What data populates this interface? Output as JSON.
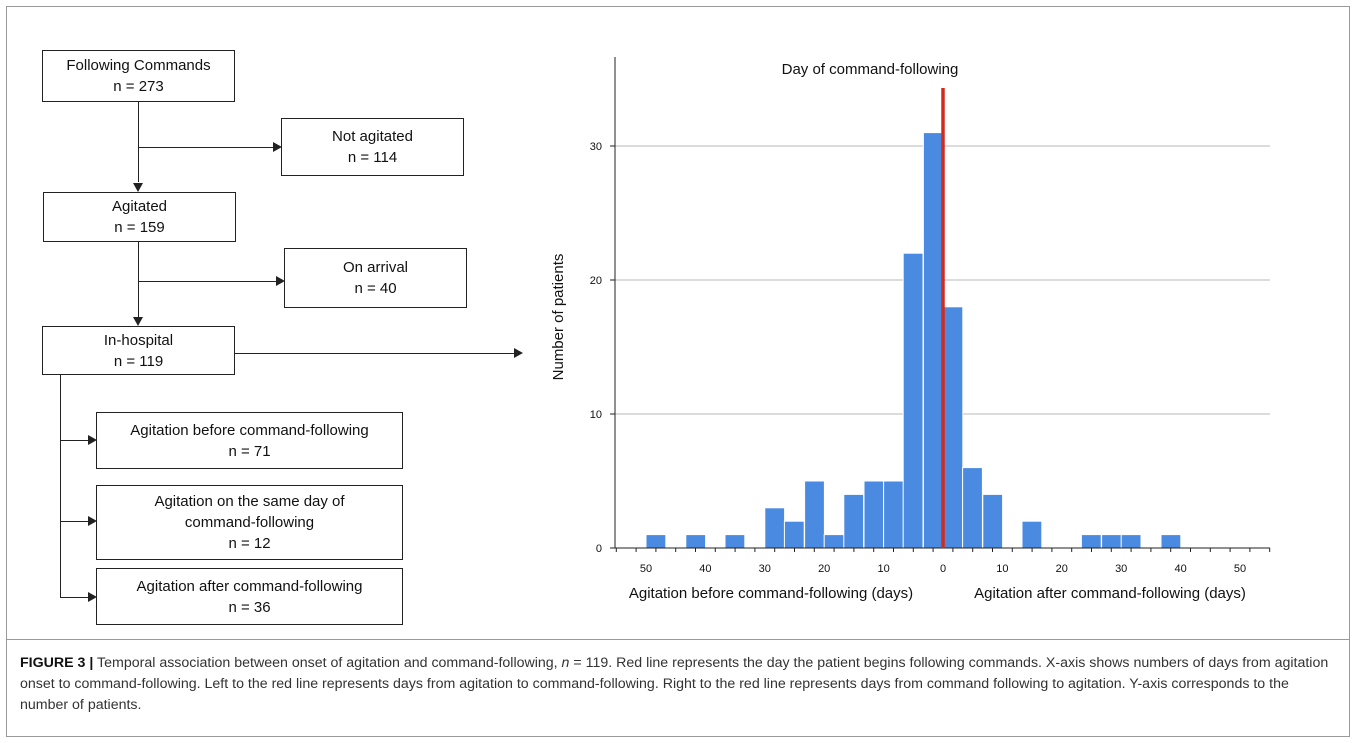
{
  "flowchart": {
    "following": {
      "label": "Following Commands",
      "n": "n = 273"
    },
    "not_agitated": {
      "label": "Not agitated",
      "n": "n = 114"
    },
    "agitated": {
      "label": "Agitated",
      "n": "n = 159"
    },
    "on_arrival": {
      "label": "On arrival",
      "n": "n = 40"
    },
    "in_hospital": {
      "label": "In-hospital",
      "n": "n = 119"
    },
    "before": {
      "label": "Agitation before command-following",
      "n": "n = 71"
    },
    "same_day": {
      "label_line1": "Agitation on the same day of",
      "label_line2": "command-following",
      "n": "n = 12"
    },
    "after": {
      "label": "Agitation after command-following",
      "n": "n = 36"
    }
  },
  "chart_data": {
    "type": "bar",
    "title": "Day of command-following",
    "ylabel": "Number of patients",
    "xlabel_left": "Agitation before command-following (days)",
    "xlabel_right": "Agitation after command-following (days)",
    "x_unit_note": "days from command-following; negative = agitation before",
    "bin_width": 3.3333,
    "ylim": [
      0,
      35
    ],
    "yticks": [
      0,
      10,
      20,
      30
    ],
    "xticks": [
      -50,
      -40,
      -30,
      -20,
      -10,
      0,
      10,
      20,
      30,
      40,
      50
    ],
    "xtick_labels": [
      "50",
      "40",
      "30",
      "20",
      "10",
      "0",
      "10",
      "20",
      "30",
      "40",
      "50"
    ],
    "bins": [
      {
        "start": -50.0,
        "value": 1
      },
      {
        "start": -43.3,
        "value": 1
      },
      {
        "start": -36.7,
        "value": 1
      },
      {
        "start": -30.0,
        "value": 3
      },
      {
        "start": -26.7,
        "value": 2
      },
      {
        "start": -23.3,
        "value": 5
      },
      {
        "start": -20.0,
        "value": 1
      },
      {
        "start": -16.7,
        "value": 4
      },
      {
        "start": -13.3,
        "value": 5
      },
      {
        "start": -10.0,
        "value": 5
      },
      {
        "start": -6.7,
        "value": 22
      },
      {
        "start": -3.3,
        "value": 31
      },
      {
        "start": 0.0,
        "value": 18
      },
      {
        "start": 3.3,
        "value": 6
      },
      {
        "start": 6.7,
        "value": 4
      },
      {
        "start": 13.3,
        "value": 2
      },
      {
        "start": 23.3,
        "value": 1
      },
      {
        "start": 26.7,
        "value": 1
      },
      {
        "start": 30.0,
        "value": 1
      },
      {
        "start": 36.7,
        "value": 1
      }
    ],
    "command_day_x": 0,
    "bar_color": "#4a8ae0",
    "line_color": "#d42a1e",
    "grid": true
  },
  "caption": {
    "label": "FIGURE 3 |",
    "text_a": " Temporal association between onset of agitation and command-following, ",
    "n_var": "n",
    "text_b": " = 119. Red line represents the day the patient begins following commands. X-axis shows numbers of days from agitation onset to command-following. Left to the red line represents days from agitation to command-following. Right to the red line represents days from command following to agitation. Y-axis corresponds to the number of patients."
  }
}
